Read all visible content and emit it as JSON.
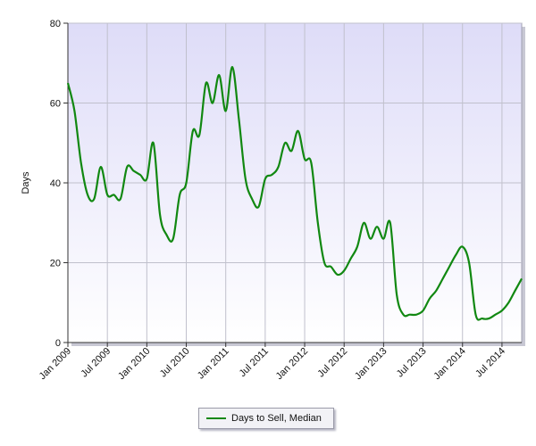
{
  "chart_data": {
    "type": "line",
    "title": "",
    "xlabel": "",
    "ylabel": "Days",
    "ylim": [
      0,
      80
    ],
    "yticks": [
      0,
      20,
      40,
      60,
      80
    ],
    "xlim": [
      "2009-01",
      "2014-10"
    ],
    "xticks": [
      "Jan 2009",
      "Jul 2009",
      "Jan 2010",
      "Jul 2010",
      "Jan 2011",
      "Jul 2011",
      "Jan 2012",
      "Jul 2012",
      "Jan 2013",
      "Jul 2013",
      "Jan 2014",
      "Jul 2014"
    ],
    "grid": true,
    "legend_position": "bottom-center",
    "series": [
      {
        "name": "Days to Sell, Median",
        "color": "#118811",
        "x": [
          "2009-01",
          "2009-02",
          "2009-03",
          "2009-04",
          "2009-05",
          "2009-06",
          "2009-07",
          "2009-08",
          "2009-09",
          "2009-10",
          "2009-11",
          "2009-12",
          "2010-01",
          "2010-02",
          "2010-03",
          "2010-04",
          "2010-05",
          "2010-06",
          "2010-07",
          "2010-08",
          "2010-09",
          "2010-10",
          "2010-11",
          "2010-12",
          "2011-01",
          "2011-02",
          "2011-03",
          "2011-04",
          "2011-05",
          "2011-06",
          "2011-07",
          "2011-08",
          "2011-09",
          "2011-10",
          "2011-11",
          "2011-12",
          "2012-01",
          "2012-02",
          "2012-03",
          "2012-04",
          "2012-05",
          "2012-06",
          "2012-07",
          "2012-08",
          "2012-09",
          "2012-10",
          "2012-11",
          "2012-12",
          "2013-01",
          "2013-02",
          "2013-03",
          "2013-04",
          "2013-05",
          "2013-06",
          "2013-07",
          "2013-08",
          "2013-09",
          "2013-10",
          "2013-11",
          "2013-12",
          "2014-01",
          "2014-02",
          "2014-03",
          "2014-04",
          "2014-05",
          "2014-06",
          "2014-07",
          "2014-08",
          "2014-09",
          "2014-10"
        ],
        "values": [
          65,
          58,
          45,
          37,
          36,
          44,
          37,
          37,
          36,
          44,
          43,
          42,
          41,
          50,
          32,
          27,
          26,
          37,
          40,
          53,
          52,
          65,
          60,
          67,
          58,
          69,
          56,
          41,
          36,
          34,
          41,
          42,
          44,
          50,
          48,
          53,
          46,
          45,
          30,
          20,
          19,
          17,
          18,
          21,
          24,
          30,
          26,
          29,
          26,
          30,
          12,
          7,
          7,
          7,
          8,
          11,
          13,
          16,
          19,
          22,
          24,
          20,
          7,
          6,
          6,
          7,
          8,
          10,
          13,
          16
        ]
      }
    ]
  }
}
